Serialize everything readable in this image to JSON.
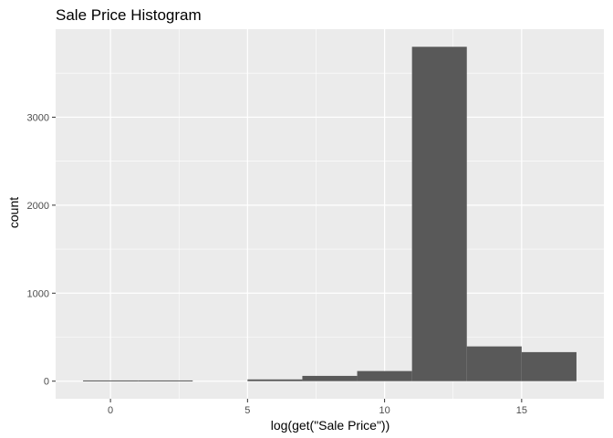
{
  "chart_data": {
    "type": "bar",
    "title": "Sale Price Histogram",
    "xlabel": "log(get(\"Sale Price\"))",
    "ylabel": "count",
    "xlim": [
      -2.0,
      18.0
    ],
    "ylim": [
      -200,
      4000
    ],
    "x_ticks": [
      0,
      5,
      10,
      15
    ],
    "y_ticks": [
      0,
      1000,
      2000,
      3000
    ],
    "bin_width": 2,
    "bins": [
      {
        "x0": -1,
        "x1": 1,
        "count": 8
      },
      {
        "x0": 1,
        "x1": 3,
        "count": 8
      },
      {
        "x0": 5,
        "x1": 7,
        "count": 20
      },
      {
        "x0": 7,
        "x1": 9,
        "count": 60
      },
      {
        "x0": 9,
        "x1": 11,
        "count": 115
      },
      {
        "x0": 11,
        "x1": 13,
        "count": 3800
      },
      {
        "x0": 13,
        "x1": 15,
        "count": 395
      },
      {
        "x0": 15,
        "x1": 17,
        "count": 330
      }
    ],
    "bar_color": "#595959",
    "panel_background": "#ebebeb",
    "grid_color": "#ffffff",
    "grid": true,
    "legend": "none"
  }
}
